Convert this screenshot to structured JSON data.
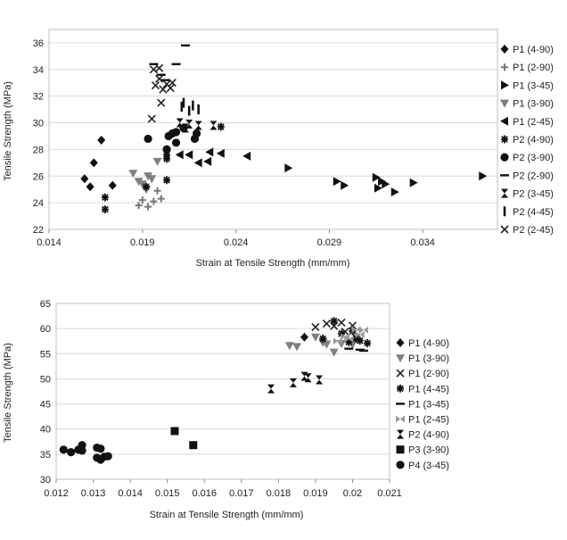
{
  "chart_data": [
    {
      "type": "scatter",
      "xlabel": "Strain at Tensile Strength (mm/mm)",
      "ylabel": "Tensile Strength (MPa)",
      "xlim": [
        0.014,
        0.038
      ],
      "ylim": [
        22,
        37
      ],
      "xticks": [
        0.014,
        0.019,
        0.024,
        0.029,
        0.034
      ],
      "xtick_labels": [
        "0.014",
        "0.019",
        "0.024",
        "0.029",
        "0.034"
      ],
      "yticks": [
        22,
        24,
        26,
        28,
        30,
        32,
        34,
        36
      ],
      "grid": "horizontal",
      "legend": "right",
      "series": [
        {
          "name": "P1 (4-90)",
          "marker": "diamond",
          "points": [
            [
              0.0159,
              25.8
            ],
            [
              0.0162,
              25.2
            ],
            [
              0.0164,
              27.0
            ],
            [
              0.0168,
              28.7
            ],
            [
              0.0174,
              25.3
            ]
          ]
        },
        {
          "name": "P1 (2-90)",
          "marker": "plus",
          "points": [
            [
              0.0188,
              23.8
            ],
            [
              0.019,
              24.2
            ],
            [
              0.0193,
              23.7
            ],
            [
              0.0196,
              24.1
            ],
            [
              0.0198,
              24.9
            ],
            [
              0.02,
              24.3
            ],
            [
              0.0192,
              25.2
            ]
          ]
        },
        {
          "name": "P1 (3-45)",
          "marker": "triangle-right",
          "points": [
            [
              0.0268,
              26.6
            ],
            [
              0.0294,
              25.6
            ],
            [
              0.0298,
              25.3
            ],
            [
              0.0315,
              25.9
            ],
            [
              0.0316,
              25.1
            ],
            [
              0.0318,
              25.6
            ],
            [
              0.032,
              25.4
            ],
            [
              0.0325,
              24.8
            ],
            [
              0.0335,
              25.5
            ],
            [
              0.0372,
              26.0
            ]
          ]
        },
        {
          "name": "P1 (3-90)",
          "marker": "triangle-down",
          "points": [
            [
              0.0185,
              26.2
            ],
            [
              0.0188,
              25.6
            ],
            [
              0.019,
              25.4
            ],
            [
              0.0192,
              25.0
            ],
            [
              0.0193,
              26.0
            ],
            [
              0.0195,
              25.8
            ],
            [
              0.0198,
              27.1
            ]
          ]
        },
        {
          "name": "P1 (2-45)",
          "marker": "triangle-left",
          "points": [
            [
              0.021,
              27.6
            ],
            [
              0.0215,
              27.6
            ],
            [
              0.022,
              27.0
            ],
            [
              0.0225,
              27.1
            ],
            [
              0.0226,
              27.8
            ],
            [
              0.0232,
              27.7
            ],
            [
              0.0246,
              27.5
            ]
          ]
        },
        {
          "name": "P2 (4-90)",
          "marker": "asterisk",
          "points": [
            [
              0.017,
              24.4
            ],
            [
              0.017,
              23.5
            ],
            [
              0.0192,
              25.2
            ],
            [
              0.0203,
              25.7
            ],
            [
              0.0203,
              27.3
            ],
            [
              0.0203,
              27.6
            ],
            [
              0.0232,
              29.7
            ]
          ]
        },
        {
          "name": "P2 (3-90)",
          "marker": "circle",
          "points": [
            [
              0.0193,
              28.8
            ],
            [
              0.0203,
              28.0
            ],
            [
              0.0204,
              29.0
            ],
            [
              0.0206,
              29.2
            ],
            [
              0.0208,
              28.5
            ],
            [
              0.0208,
              29.3
            ],
            [
              0.0212,
              29.6
            ],
            [
              0.0218,
              28.8
            ],
            [
              0.0219,
              29.2
            ]
          ]
        },
        {
          "name": "P2 (2-90)",
          "marker": "dash",
          "points": [
            [
              0.0196,
              34.4
            ],
            [
              0.0202,
              33.2
            ],
            [
              0.0208,
              34.4
            ],
            [
              0.0213,
              35.8
            ],
            [
              0.02,
              33.6
            ]
          ]
        },
        {
          "name": "P2 (3-45)",
          "marker": "hourglass",
          "points": [
            [
              0.021,
              30.0
            ],
            [
              0.0213,
              29.6
            ],
            [
              0.0215,
              29.9
            ],
            [
              0.022,
              29.8
            ],
            [
              0.0228,
              29.8
            ]
          ]
        },
        {
          "name": "P2 (4-45)",
          "marker": "bar",
          "points": [
            [
              0.0211,
              31.2
            ],
            [
              0.0215,
              30.9
            ],
            [
              0.0217,
              31.3
            ],
            [
              0.022,
              31.0
            ],
            [
              0.0212,
              31.5
            ]
          ]
        },
        {
          "name": "P2 (2-45)",
          "marker": "x",
          "points": [
            [
              0.0195,
              30.3
            ],
            [
              0.0197,
              32.8
            ],
            [
              0.0199,
              33.3
            ],
            [
              0.02,
              31.5
            ],
            [
              0.0201,
              32.5
            ],
            [
              0.0203,
              32.9
            ],
            [
              0.0205,
              32.6
            ],
            [
              0.0206,
              33.0
            ],
            [
              0.0196,
              34.0
            ],
            [
              0.0199,
              34.1
            ]
          ]
        }
      ]
    },
    {
      "type": "scatter",
      "xlabel": "Strain at Tensile Strength (mm/mm)",
      "ylabel": "Tensile Strength (MPa)",
      "xlim": [
        0.012,
        0.021
      ],
      "ylim": [
        30,
        65
      ],
      "xticks": [
        0.012,
        0.013,
        0.014,
        0.015,
        0.016,
        0.017,
        0.018,
        0.019,
        0.02,
        0.021
      ],
      "xtick_labels": [
        "0.012",
        "0.013",
        "0.014",
        "0.015",
        "0.016",
        "0.017",
        "0.018",
        "0.019",
        "0.02",
        "0.021"
      ],
      "yticks": [
        30,
        35,
        40,
        45,
        50,
        55,
        60,
        65
      ],
      "grid": "horizontal",
      "legend": "right",
      "series": [
        {
          "name": "P1 (4-90)",
          "marker": "diamond",
          "points": [
            [
              0.0187,
              58.3
            ]
          ]
        },
        {
          "name": "P1 (3-90)",
          "marker": "triangle-down",
          "points": [
            [
              0.0183,
              56.6
            ],
            [
              0.0185,
              56.4
            ],
            [
              0.019,
              58.3
            ],
            [
              0.0192,
              57.2
            ],
            [
              0.0193,
              56.9
            ],
            [
              0.0195,
              55.3
            ],
            [
              0.0197,
              57.0
            ],
            [
              0.02,
              56.8
            ]
          ]
        },
        {
          "name": "P1 (2-90)",
          "marker": "x",
          "points": [
            [
              0.019,
              60.3
            ],
            [
              0.0193,
              61.0
            ],
            [
              0.0195,
              60.5
            ],
            [
              0.0197,
              61.2
            ],
            [
              0.0198,
              59.4
            ],
            [
              0.02,
              60.6
            ],
            [
              0.0201,
              58.2
            ]
          ]
        },
        {
          "name": "P1 (4-45)",
          "marker": "asterisk",
          "points": [
            [
              0.0192,
              58.0
            ],
            [
              0.0195,
              61.5
            ],
            [
              0.0197,
              59.0
            ],
            [
              0.0199,
              57.3
            ],
            [
              0.02,
              59.5
            ],
            [
              0.0201,
              58.0
            ],
            [
              0.0202,
              57.6
            ],
            [
              0.0204,
              57.1
            ]
          ]
        },
        {
          "name": "P1 (3-45)",
          "marker": "dash",
          "points": [
            [
              0.0199,
              56.0
            ],
            [
              0.0202,
              55.8
            ],
            [
              0.0203,
              55.6
            ]
          ]
        },
        {
          "name": "P1 (2-45)",
          "marker": "bowtie",
          "points": [
            [
              0.0196,
              57.5
            ],
            [
              0.0198,
              58.4
            ],
            [
              0.0199,
              57.9
            ],
            [
              0.0201,
              59.8
            ],
            [
              0.0202,
              58.8
            ],
            [
              0.0203,
              59.7
            ]
          ]
        },
        {
          "name": "P2 (4-90)",
          "marker": "hourglass",
          "points": [
            [
              0.0178,
              48.0
            ],
            [
              0.0184,
              49.2
            ],
            [
              0.0187,
              50.5
            ],
            [
              0.0188,
              50.2
            ],
            [
              0.0191,
              49.8
            ]
          ]
        },
        {
          "name": "P3 (3-90)",
          "marker": "square",
          "points": [
            [
              0.0152,
              39.6
            ],
            [
              0.0157,
              36.8
            ]
          ]
        },
        {
          "name": "P4 (3-45)",
          "marker": "circle",
          "points": [
            [
              0.0122,
              35.9
            ],
            [
              0.0124,
              35.4
            ],
            [
              0.0126,
              35.9
            ],
            [
              0.0127,
              36.8
            ],
            [
              0.0127,
              35.7
            ],
            [
              0.0131,
              36.3
            ],
            [
              0.0131,
              34.3
            ],
            [
              0.0132,
              33.9
            ],
            [
              0.0132,
              36.1
            ],
            [
              0.0133,
              34.5
            ],
            [
              0.0134,
              34.6
            ]
          ]
        }
      ]
    }
  ]
}
